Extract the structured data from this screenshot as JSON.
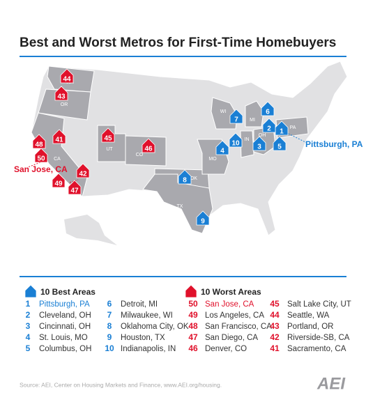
{
  "title": "Best and Worst Metros for First-Time Homebuyers",
  "map": {
    "states": [
      "WA",
      "OR",
      "CA",
      "UT",
      "CO",
      "OK",
      "TX",
      "MO",
      "WI",
      "MI",
      "IN",
      "OH",
      "PA"
    ],
    "callouts": {
      "best": "Pittsburgh, PA",
      "worst": "San Jose, CA"
    }
  },
  "legend": {
    "best": {
      "heading": "10 Best Areas",
      "items": [
        {
          "rank": 1,
          "name": "Pittsburgh, PA"
        },
        {
          "rank": 2,
          "name": "Cleveland, OH"
        },
        {
          "rank": 3,
          "name": "Cincinnati, OH"
        },
        {
          "rank": 4,
          "name": "St. Louis, MO"
        },
        {
          "rank": 5,
          "name": "Columbus, OH"
        },
        {
          "rank": 6,
          "name": "Detroit, MI"
        },
        {
          "rank": 7,
          "name": "Milwaukee, WI"
        },
        {
          "rank": 8,
          "name": "Oklahoma City, OK"
        },
        {
          "rank": 9,
          "name": "Houston, TX"
        },
        {
          "rank": 10,
          "name": "Indianapolis, IN"
        }
      ]
    },
    "worst": {
      "heading": "10 Worst Areas",
      "items": [
        {
          "rank": 50,
          "name": "San Jose, CA"
        },
        {
          "rank": 49,
          "name": "Los Angeles, CA"
        },
        {
          "rank": 48,
          "name": "San Francisco, CA"
        },
        {
          "rank": 47,
          "name": "San Diego, CA"
        },
        {
          "rank": 46,
          "name": "Denver, CO"
        },
        {
          "rank": 45,
          "name": "Salt Lake City, UT"
        },
        {
          "rank": 44,
          "name": "Seattle, WA"
        },
        {
          "rank": 43,
          "name": "Portland, OR"
        },
        {
          "rank": 42,
          "name": "Riverside-SB, CA"
        },
        {
          "rank": 41,
          "name": "Sacramento, CA"
        }
      ]
    }
  },
  "source": "Source: AEI, Center on Housing Markets and Finance, www.AEI.org/housing.",
  "logo": "AEI"
}
